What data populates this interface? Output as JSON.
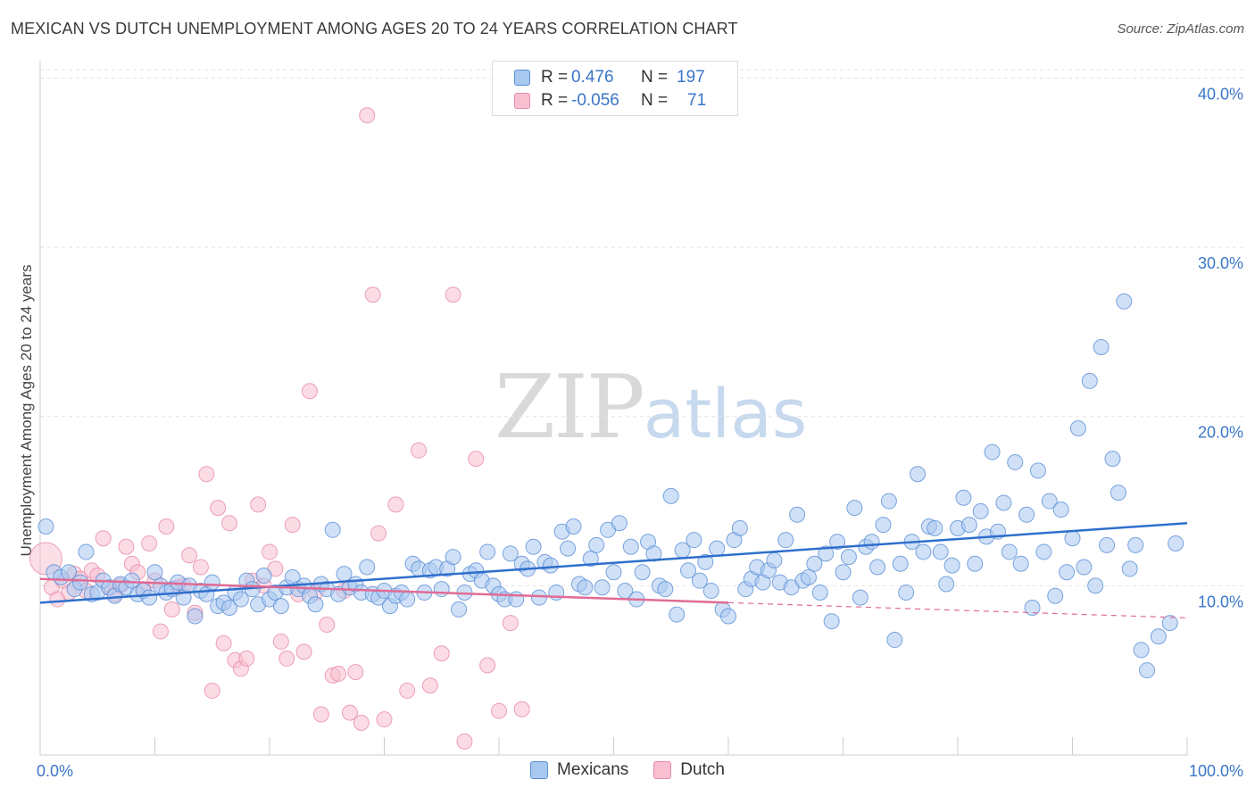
{
  "title": "MEXICAN VS DUTCH UNEMPLOYMENT AMONG AGES 20 TO 24 YEARS CORRELATION CHART",
  "source": "Source: ZipAtlas.com",
  "watermark": {
    "zip": "ZIP",
    "atlas": "atlas"
  },
  "legend": {
    "rows": [
      {
        "r_label": "R =",
        "r_value": "0.476",
        "n_label": "N =",
        "n_value": "197"
      },
      {
        "r_label": "R =",
        "r_value": "-0.056",
        "n_label": "N =",
        "n_value": "71"
      }
    ],
    "series_names": [
      "Mexicans",
      "Dutch"
    ]
  },
  "colors": {
    "mexicans_fill": "#a9c8f0",
    "mexicans_stroke": "#5b8fd6",
    "mexicans_line": "#2f6fcc",
    "dutch_fill": "#f7bfd0",
    "dutch_stroke": "#e88aa8",
    "dutch_line": "#e06b95",
    "tick_label": "#3a76c8",
    "grid": "#e2e2e2"
  },
  "chart_data": {
    "type": "scatter",
    "ylabel": "Unemployment Among Ages 20 to 24 years",
    "xlim": [
      0,
      100
    ],
    "ylim": [
      0,
      40.5
    ],
    "x_tick_labels": [
      {
        "value": 0,
        "label": "0.0%"
      },
      {
        "value": 100,
        "label": "100.0%"
      }
    ],
    "y_ticks": [
      {
        "value": 10,
        "label": "10.0%"
      },
      {
        "value": 20,
        "label": "20.0%"
      },
      {
        "value": 30,
        "label": "30.0%"
      },
      {
        "value": 40,
        "label": "40.0%"
      }
    ],
    "grid": true,
    "legend_position": "top-center",
    "series": [
      {
        "name": "Mexicans",
        "trend": {
          "x0": 0,
          "y0": 9.0,
          "x1": 100,
          "y1": 13.7
        },
        "points": [
          [
            0.5,
            13.5
          ],
          [
            1.2,
            10.8
          ],
          [
            1.8,
            10.5
          ],
          [
            2.5,
            10.8
          ],
          [
            3,
            9.8
          ],
          [
            3.5,
            10.2
          ],
          [
            4,
            12
          ],
          [
            4.5,
            9.5
          ],
          [
            5,
            9.6
          ],
          [
            5.5,
            10.3
          ],
          [
            6,
            9.9
          ],
          [
            6.5,
            9.4
          ],
          [
            7,
            10.1
          ],
          [
            7.5,
            9.9
          ],
          [
            8,
            10.3
          ],
          [
            8.5,
            9.5
          ],
          [
            9,
            9.7
          ],
          [
            9.5,
            9.3
          ],
          [
            10,
            10.8
          ],
          [
            10.5,
            10
          ],
          [
            11,
            9.6
          ],
          [
            11.5,
            9.8
          ],
          [
            12,
            10.2
          ],
          [
            12.5,
            9.3
          ],
          [
            13,
            10
          ],
          [
            13.5,
            8.2
          ],
          [
            14,
            9.7
          ],
          [
            14.5,
            9.5
          ],
          [
            15,
            10.2
          ],
          [
            15.5,
            8.8
          ],
          [
            16,
            9
          ],
          [
            16.5,
            8.7
          ],
          [
            17,
            9.6
          ],
          [
            17.5,
            9.2
          ],
          [
            18,
            10.3
          ],
          [
            18.5,
            9.8
          ],
          [
            19,
            8.9
          ],
          [
            19.5,
            10.6
          ],
          [
            20,
            9.2
          ],
          [
            20.5,
            9.6
          ],
          [
            21,
            8.8
          ],
          [
            21.5,
            9.9
          ],
          [
            22,
            10.5
          ],
          [
            22.5,
            9.8
          ],
          [
            23,
            10
          ],
          [
            23.5,
            9.4
          ],
          [
            24,
            8.9
          ],
          [
            24.5,
            10.1
          ],
          [
            25,
            9.8
          ],
          [
            25.5,
            13.3
          ],
          [
            26,
            9.5
          ],
          [
            26.5,
            10.7
          ],
          [
            27,
            9.9
          ],
          [
            27.5,
            10.1
          ],
          [
            28,
            9.6
          ],
          [
            28.5,
            11.1
          ],
          [
            29,
            9.5
          ],
          [
            29.5,
            9.3
          ],
          [
            30,
            9.7
          ],
          [
            30.5,
            8.8
          ],
          [
            31,
            9.4
          ],
          [
            31.5,
            9.6
          ],
          [
            32,
            9.2
          ],
          [
            32.5,
            11.3
          ],
          [
            33,
            11
          ],
          [
            33.5,
            9.6
          ],
          [
            34,
            10.9
          ],
          [
            34.5,
            11.1
          ],
          [
            35,
            9.8
          ],
          [
            35.5,
            11
          ],
          [
            36,
            11.7
          ],
          [
            36.5,
            8.6
          ],
          [
            37,
            9.6
          ],
          [
            37.5,
            10.7
          ],
          [
            38,
            10.9
          ],
          [
            38.5,
            10.3
          ],
          [
            39,
            12
          ],
          [
            39.5,
            10
          ],
          [
            40,
            9.5
          ],
          [
            40.5,
            9.2
          ],
          [
            41,
            11.9
          ],
          [
            41.5,
            9.2
          ],
          [
            42,
            11.3
          ],
          [
            42.5,
            11
          ],
          [
            43,
            12.3
          ],
          [
            43.5,
            9.3
          ],
          [
            44,
            11.4
          ],
          [
            44.5,
            11.2
          ],
          [
            45,
            9.6
          ],
          [
            45.5,
            13.2
          ],
          [
            46,
            12.2
          ],
          [
            46.5,
            13.5
          ],
          [
            47,
            10.1
          ],
          [
            47.5,
            9.9
          ],
          [
            48,
            11.6
          ],
          [
            48.5,
            12.4
          ],
          [
            49,
            9.9
          ],
          [
            49.5,
            13.3
          ],
          [
            50,
            10.8
          ],
          [
            50.5,
            13.7
          ],
          [
            51,
            9.7
          ],
          [
            51.5,
            12.3
          ],
          [
            52,
            9.2
          ],
          [
            52.5,
            10.8
          ],
          [
            53,
            12.6
          ],
          [
            53.5,
            11.9
          ],
          [
            54,
            10
          ],
          [
            54.5,
            9.8
          ],
          [
            55,
            15.3
          ],
          [
            55.5,
            8.3
          ],
          [
            56,
            12.1
          ],
          [
            56.5,
            10.9
          ],
          [
            57,
            12.7
          ],
          [
            57.5,
            10.3
          ],
          [
            58,
            11.4
          ],
          [
            58.5,
            9.7
          ],
          [
            59,
            12.2
          ],
          [
            59.5,
            8.6
          ],
          [
            60,
            8.2
          ],
          [
            60.5,
            12.7
          ],
          [
            61,
            13.4
          ],
          [
            61.5,
            9.8
          ],
          [
            62,
            10.4
          ],
          [
            62.5,
            11.1
          ],
          [
            63,
            10.2
          ],
          [
            63.5,
            10.9
          ],
          [
            64,
            11.5
          ],
          [
            64.5,
            10.2
          ],
          [
            65,
            12.7
          ],
          [
            65.5,
            9.9
          ],
          [
            66,
            14.2
          ],
          [
            66.5,
            10.3
          ],
          [
            67,
            10.5
          ],
          [
            67.5,
            11.3
          ],
          [
            68,
            9.6
          ],
          [
            68.5,
            11.9
          ],
          [
            69,
            7.9
          ],
          [
            69.5,
            12.6
          ],
          [
            70,
            10.8
          ],
          [
            70.5,
            11.7
          ],
          [
            71,
            14.6
          ],
          [
            71.5,
            9.3
          ],
          [
            72,
            12.3
          ],
          [
            72.5,
            12.6
          ],
          [
            73,
            11.1
          ],
          [
            73.5,
            13.6
          ],
          [
            74,
            15
          ],
          [
            74.5,
            6.8
          ],
          [
            75,
            11.3
          ],
          [
            75.5,
            9.6
          ],
          [
            76,
            12.6
          ],
          [
            76.5,
            16.6
          ],
          [
            77,
            12
          ],
          [
            77.5,
            13.5
          ],
          [
            78,
            13.4
          ],
          [
            78.5,
            12
          ],
          [
            79,
            10.1
          ],
          [
            79.5,
            11.2
          ],
          [
            80,
            13.4
          ],
          [
            80.5,
            15.2
          ],
          [
            81,
            13.6
          ],
          [
            81.5,
            11.3
          ],
          [
            82,
            14.4
          ],
          [
            82.5,
            12.9
          ],
          [
            83,
            17.9
          ],
          [
            83.5,
            13.2
          ],
          [
            84,
            14.9
          ],
          [
            84.5,
            12
          ],
          [
            85,
            17.3
          ],
          [
            85.5,
            11.3
          ],
          [
            86,
            14.2
          ],
          [
            86.5,
            8.7
          ],
          [
            87,
            16.8
          ],
          [
            87.5,
            12
          ],
          [
            88,
            15
          ],
          [
            88.5,
            9.4
          ],
          [
            89,
            14.5
          ],
          [
            89.5,
            10.8
          ],
          [
            90,
            12.8
          ],
          [
            90.5,
            19.3
          ],
          [
            91,
            11.1
          ],
          [
            91.5,
            22.1
          ],
          [
            92,
            10
          ],
          [
            92.5,
            24.1
          ],
          [
            93,
            12.4
          ],
          [
            93.5,
            17.5
          ],
          [
            94,
            15.5
          ],
          [
            94.5,
            26.8
          ],
          [
            95,
            11
          ],
          [
            95.5,
            12.4
          ],
          [
            96,
            6.2
          ],
          [
            96.5,
            5
          ],
          [
            97.5,
            7
          ],
          [
            98.5,
            7.8
          ],
          [
            99,
            12.5
          ]
        ]
      },
      {
        "name": "Dutch",
        "trend": {
          "x0": 0,
          "y0": 10.4,
          "x1": 60,
          "y1": 9.0,
          "dash_x1": 100,
          "dash_y1": 8.1
        },
        "points": [
          [
            0.5,
            11.6
          ],
          [
            1,
            9.9
          ],
          [
            1.5,
            9.2
          ],
          [
            2,
            10.3
          ],
          [
            2.5,
            9.6
          ],
          [
            3,
            10.7
          ],
          [
            3.5,
            10.4
          ],
          [
            4,
            9.7
          ],
          [
            4.5,
            10.9
          ],
          [
            5,
            10.6
          ],
          [
            5.5,
            12.8
          ],
          [
            6,
            9.9
          ],
          [
            6.5,
            9.5
          ],
          [
            7,
            10
          ],
          [
            7.5,
            12.3
          ],
          [
            8,
            11.3
          ],
          [
            8.5,
            10.8
          ],
          [
            9,
            9.8
          ],
          [
            9.5,
            12.5
          ],
          [
            10,
            10.3
          ],
          [
            10.5,
            7.3
          ],
          [
            11,
            13.5
          ],
          [
            11.5,
            8.6
          ],
          [
            12,
            9.9
          ],
          [
            12.5,
            10
          ],
          [
            13,
            11.8
          ],
          [
            13.5,
            8.4
          ],
          [
            14,
            11.1
          ],
          [
            14.5,
            16.6
          ],
          [
            15,
            3.8
          ],
          [
            15.5,
            14.6
          ],
          [
            16,
            6.6
          ],
          [
            16.5,
            13.7
          ],
          [
            17,
            5.6
          ],
          [
            17.5,
            5.1
          ],
          [
            18,
            5.7
          ],
          [
            18.5,
            10.3
          ],
          [
            19,
            14.8
          ],
          [
            19.5,
            10
          ],
          [
            20,
            12
          ],
          [
            20.5,
            11
          ],
          [
            21,
            6.7
          ],
          [
            21.5,
            5.7
          ],
          [
            22,
            13.6
          ],
          [
            22.5,
            9.5
          ],
          [
            23,
            6.1
          ],
          [
            23.5,
            21.5
          ],
          [
            24,
            9.6
          ],
          [
            24.5,
            2.4
          ],
          [
            25,
            7.7
          ],
          [
            25.5,
            4.7
          ],
          [
            26,
            4.8
          ],
          [
            26.5,
            9.7
          ],
          [
            27,
            2.5
          ],
          [
            27.5,
            4.9
          ],
          [
            28,
            1.9
          ],
          [
            28.5,
            37.8
          ],
          [
            29,
            27.2
          ],
          [
            29.5,
            13.1
          ],
          [
            30,
            2.1
          ],
          [
            31,
            14.8
          ],
          [
            32,
            3.8
          ],
          [
            33,
            18
          ],
          [
            34,
            4.1
          ],
          [
            35,
            6
          ],
          [
            36,
            27.2
          ],
          [
            37,
            0.8
          ],
          [
            38,
            17.5
          ],
          [
            39,
            5.3
          ],
          [
            40,
            2.6
          ],
          [
            41,
            7.8
          ],
          [
            42,
            2.7
          ]
        ]
      }
    ]
  }
}
